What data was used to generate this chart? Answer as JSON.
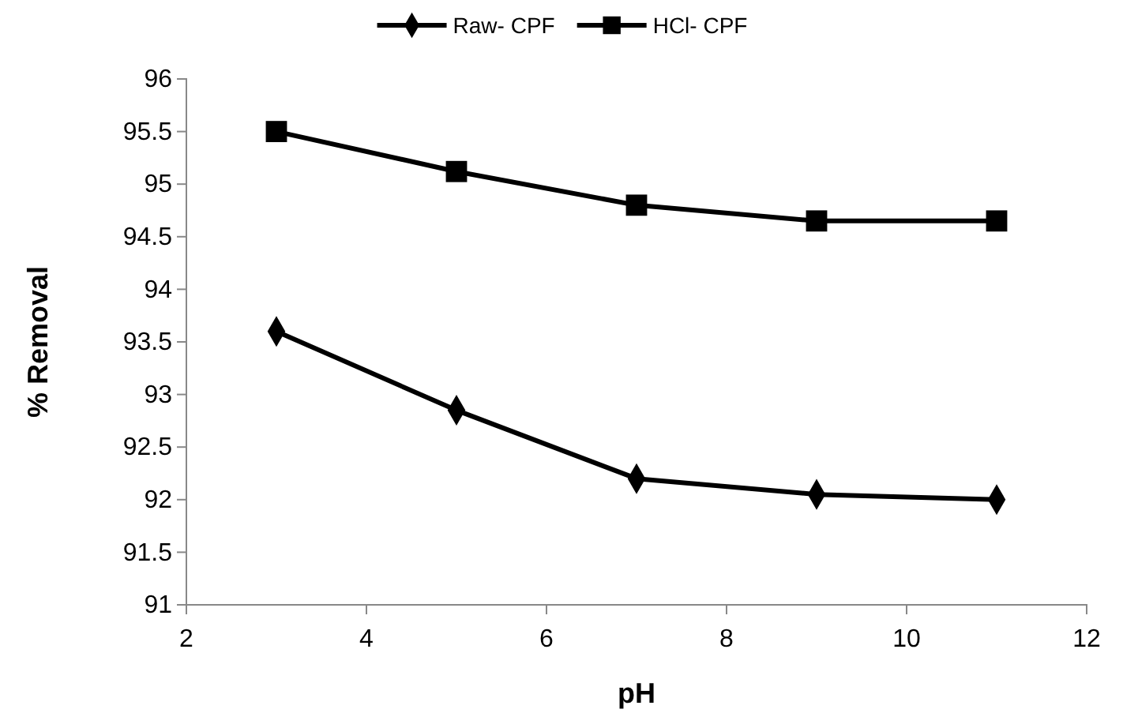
{
  "chart_data": {
    "type": "line",
    "xlabel": "pH",
    "ylabel": "% Removal",
    "x": [
      3,
      5,
      7,
      9,
      11
    ],
    "series": [
      {
        "name": "Raw- CPF",
        "color": "#000000",
        "marker": "diamond",
        "values": [
          93.6,
          92.85,
          92.2,
          92.05,
          92.0
        ]
      },
      {
        "name": "HCl- CPF",
        "color": "#000000",
        "marker": "square",
        "values": [
          95.5,
          95.12,
          94.8,
          94.65,
          94.65
        ]
      }
    ],
    "xlim": [
      2,
      12
    ],
    "xticks": [
      2,
      4,
      6,
      8,
      10,
      12
    ],
    "ylim": [
      91,
      96
    ],
    "yticks": [
      91,
      91.5,
      92,
      92.5,
      93,
      93.5,
      94,
      94.5,
      95,
      95.5,
      96
    ],
    "grid": false,
    "legend": "top",
    "line_style": "solid"
  }
}
